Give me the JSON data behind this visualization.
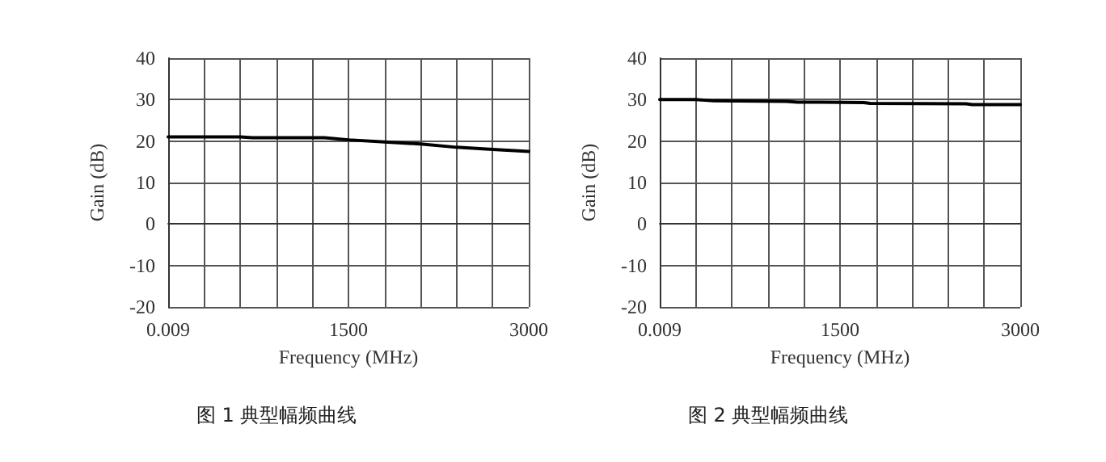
{
  "chart_data": [
    {
      "type": "line",
      "xlabel": "Frequency (MHz)",
      "ylabel": "Gain (dB)",
      "annotations": [
        "图 1 典型幅频曲线"
      ],
      "xlim": [
        0.009,
        3000
      ],
      "xticks": [
        0.009,
        {
          "value": 300,
          "label": null
        },
        {
          "value": 600,
          "label": null
        },
        {
          "value": 900,
          "label": null
        },
        {
          "value": 1200,
          "label": null
        },
        1500,
        {
          "value": 1800,
          "label": null
        },
        {
          "value": 2100,
          "label": null
        },
        {
          "value": 2400,
          "label": null
        },
        {
          "value": 2700,
          "label": null
        },
        3000
      ],
      "ylim": [
        -20,
        40
      ],
      "yticks": [
        -20,
        -10,
        0,
        10,
        20,
        30,
        40
      ],
      "grid": true,
      "marker": "none",
      "line_style": "solid",
      "series": [
        {
          "color": "#000000",
          "x": [
            0.009,
            600,
            700,
            1300,
            1500,
            1800,
            2100,
            2400,
            2700,
            3000
          ],
          "values": [
            21,
            21,
            20.8,
            20.8,
            20.3,
            19.8,
            19.3,
            18.5,
            18,
            17.5
          ]
        }
      ]
    },
    {
      "type": "line",
      "xlabel": "Frequency (MHz)",
      "ylabel": "Gain (dB)",
      "annotations": [
        "图 2 典型幅频曲线"
      ],
      "xlim": [
        0.009,
        3000
      ],
      "xticks": [
        0.009,
        {
          "value": 300,
          "label": null
        },
        {
          "value": 600,
          "label": null
        },
        {
          "value": 900,
          "label": null
        },
        {
          "value": 1200,
          "label": null
        },
        1500,
        {
          "value": 1800,
          "label": null
        },
        {
          "value": 2100,
          "label": null
        },
        {
          "value": 2400,
          "label": null
        },
        {
          "value": 2700,
          "label": null
        },
        3000
      ],
      "ylim": [
        -20,
        40
      ],
      "yticks": [
        -20,
        -10,
        0,
        10,
        20,
        30,
        40
      ],
      "grid": true,
      "marker": "none",
      "line_style": "solid",
      "series": [
        {
          "color": "#000000",
          "x": [
            0.009,
            300,
            450,
            1050,
            1150,
            1700,
            1750,
            2550,
            2600,
            3000
          ],
          "values": [
            30,
            30,
            29.7,
            29.6,
            29.4,
            29.3,
            29.1,
            29,
            28.8,
            28.8
          ]
        }
      ]
    }
  ]
}
